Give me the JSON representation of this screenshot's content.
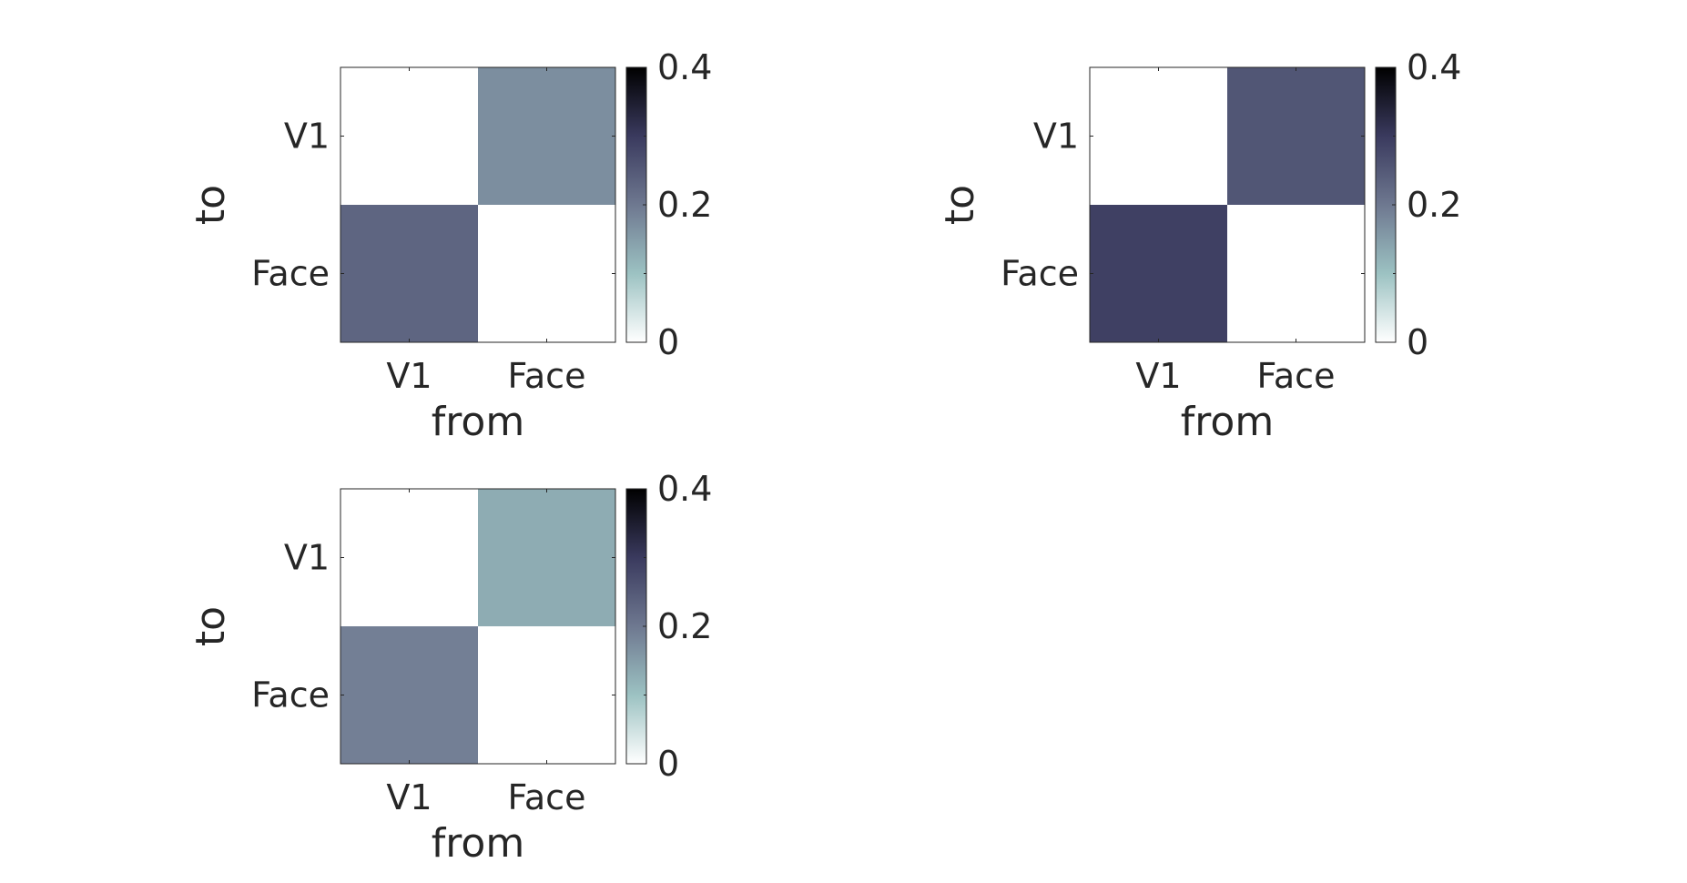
{
  "chart_data": [
    {
      "type": "heatmap",
      "xlabel": "from",
      "ylabel": "to",
      "x_categories": [
        "V1",
        "Face"
      ],
      "y_categories": [
        "V1",
        "Face"
      ],
      "values": [
        [
          0,
          0.17
        ],
        [
          0.23,
          0
        ]
      ],
      "colorbar": {
        "min": 0,
        "max": 0.4,
        "ticks": [
          "0",
          "0.2",
          "0.4"
        ]
      }
    },
    {
      "type": "heatmap",
      "xlabel": "from",
      "ylabel": "to",
      "x_categories": [
        "V1",
        "Face"
      ],
      "y_categories": [
        "V1",
        "Face"
      ],
      "values": [
        [
          0,
          0.255
        ],
        [
          0.29,
          0
        ]
      ],
      "colorbar": {
        "min": 0,
        "max": 0.4,
        "ticks": [
          "0",
          "0.2",
          "0.4"
        ]
      }
    },
    {
      "type": "heatmap",
      "xlabel": "from",
      "ylabel": "to",
      "x_categories": [
        "V1",
        "Face"
      ],
      "y_categories": [
        "V1",
        "Face"
      ],
      "values": [
        [
          0,
          0.13
        ],
        [
          0.19,
          0
        ]
      ],
      "colorbar": {
        "min": 0,
        "max": 0.4,
        "ticks": [
          "0",
          "0.2",
          "0.4"
        ]
      }
    }
  ],
  "colors": {
    "colormap": [
      "#ffffff",
      "#9cc2c2",
      "#6e7890",
      "#3a3a5e",
      "#000000"
    ],
    "text": "#262626",
    "axis": "#262626"
  }
}
